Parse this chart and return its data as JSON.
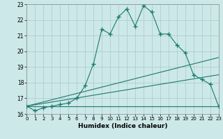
{
  "title": "",
  "xlabel": "Humidex (Indice chaleur)",
  "ylabel": "",
  "xlim": [
    0,
    23
  ],
  "ylim": [
    16,
    23
  ],
  "yticks": [
    16,
    17,
    18,
    19,
    20,
    21,
    22,
    23
  ],
  "xticks": [
    0,
    1,
    2,
    3,
    4,
    5,
    6,
    7,
    8,
    9,
    10,
    11,
    12,
    13,
    14,
    15,
    16,
    17,
    18,
    19,
    20,
    21,
    22,
    23
  ],
  "background_color": "#cde8e8",
  "grid_color": "#aecece",
  "line_color": "#1a7a6e",
  "curve1_x": [
    0,
    1,
    2,
    3,
    4,
    5,
    6,
    7,
    8,
    9,
    10,
    11,
    12,
    13,
    14,
    15,
    16,
    17,
    18,
    19,
    20,
    21,
    22,
    23
  ],
  "curve1_y": [
    16.5,
    16.2,
    16.4,
    16.5,
    16.6,
    16.7,
    17.0,
    17.8,
    19.2,
    21.4,
    21.1,
    22.2,
    22.7,
    21.6,
    22.9,
    22.5,
    21.1,
    21.1,
    20.4,
    19.9,
    18.5,
    18.2,
    17.9,
    16.5
  ],
  "curve2_x": [
    0,
    23
  ],
  "curve2_y": [
    16.5,
    16.5
  ],
  "curve3_x": [
    0,
    23
  ],
  "curve3_y": [
    16.5,
    19.6
  ],
  "curve4_x": [
    0,
    23
  ],
  "curve4_y": [
    16.5,
    18.5
  ]
}
